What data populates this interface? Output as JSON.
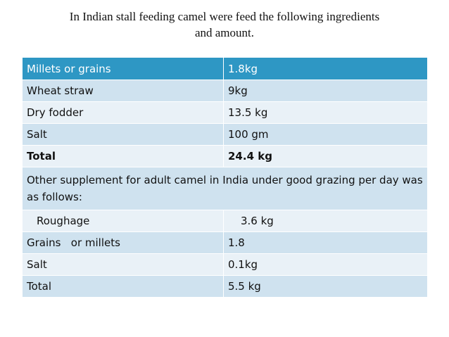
{
  "title": {
    "line1": "In Indian stall feeding camel were feed the following ingredients",
    "line2": "and amount."
  },
  "table": {
    "header": {
      "item": "Millets or grains",
      "amount": "1.8kg"
    },
    "rows": [
      {
        "item": "Wheat straw",
        "amount": "9kg"
      },
      {
        "item": "Dry fodder",
        "amount": "13.5 kg"
      },
      {
        "item": "Salt",
        "amount": "100 gm"
      },
      {
        "item": "Total",
        "amount": "24.4 kg"
      }
    ],
    "note": "Other supplement for adult camel in India under good grazing per day was as follows:",
    "rows2": [
      {
        "item": "Roughage",
        "amount": "3.6 kg"
      },
      {
        "item": "Grains   or millets",
        "amount": "1.8"
      },
      {
        "item": "Salt",
        "amount": "0.1kg"
      },
      {
        "item": "Total",
        "amount": "5.5 kg"
      }
    ]
  },
  "colors": {
    "header": "#2e97c4",
    "row_dark": "#cfe2ef",
    "row_light": "#e9f1f7"
  }
}
